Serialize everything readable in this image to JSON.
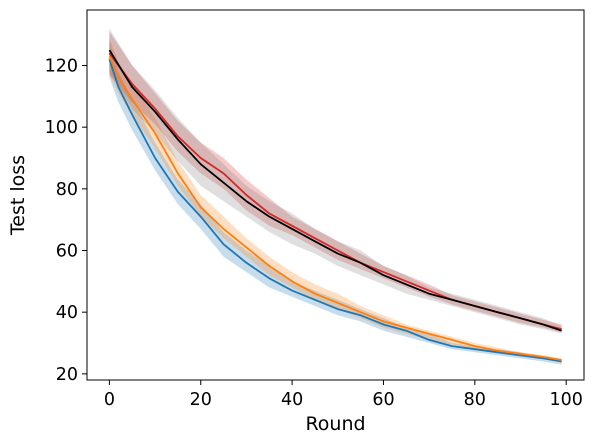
{
  "chart_data": {
    "type": "line",
    "title": "",
    "xlabel": "Round",
    "ylabel": "Test loss",
    "xlim": [
      -4.9,
      103.9
    ],
    "ylim": [
      18,
      138
    ],
    "xticks": [
      0,
      20,
      40,
      60,
      80,
      100
    ],
    "yticks": [
      20,
      40,
      60,
      80,
      100,
      120
    ],
    "grid": false,
    "legend": "none",
    "series": [
      {
        "color": "#1f77b4",
        "band_opacity": 0.25,
        "x": [
          0,
          2,
          5,
          10,
          15,
          20,
          25,
          30,
          35,
          40,
          45,
          50,
          55,
          60,
          65,
          70,
          75,
          80,
          85,
          90,
          95,
          99
        ],
        "y": [
          122,
          113,
          104,
          90,
          79,
          71,
          62,
          56,
          51,
          47,
          44,
          41,
          39,
          36,
          34,
          31,
          29,
          28,
          27,
          26,
          25,
          24
        ],
        "lower": [
          116,
          108,
          99,
          86,
          75,
          67,
          58,
          53,
          48,
          45,
          42,
          39,
          37,
          34,
          32,
          30,
          28,
          27,
          26,
          25,
          24,
          23
        ],
        "upper": [
          128,
          118,
          109,
          95,
          83,
          75,
          66,
          60,
          55,
          50,
          47,
          44,
          41,
          38,
          35,
          33,
          30,
          29,
          28,
          27,
          25,
          24.5
        ]
      },
      {
        "color": "#ff7f0e",
        "band_opacity": 0.25,
        "x": [
          0,
          2,
          5,
          10,
          15,
          20,
          25,
          30,
          35,
          40,
          45,
          50,
          55,
          60,
          65,
          70,
          75,
          80,
          85,
          90,
          95,
          99
        ],
        "y": [
          123,
          116,
          109,
          98,
          85,
          74,
          67,
          61,
          55,
          50,
          46,
          43,
          40,
          37,
          35,
          33,
          31,
          29,
          27.5,
          26.5,
          25.5,
          24.5
        ],
        "lower": [
          117,
          111,
          104,
          93,
          81,
          71,
          64,
          58,
          52,
          48,
          44,
          41,
          38,
          35,
          33,
          31,
          29.5,
          28,
          27,
          26,
          25,
          24
        ],
        "upper": [
          129,
          121,
          114,
          103,
          89,
          78,
          71,
          64,
          58,
          53,
          49,
          46,
          42,
          39,
          36,
          34,
          32,
          30,
          28.5,
          27,
          26,
          25
        ]
      },
      {
        "color": "#d62728",
        "band_opacity": 0.25,
        "x": [
          0,
          5,
          10,
          15,
          20,
          25,
          30,
          35,
          40,
          45,
          50,
          55,
          60,
          65,
          70,
          75,
          80,
          85,
          90,
          95,
          99
        ],
        "y": [
          124,
          114,
          106,
          97,
          90,
          85,
          78,
          72,
          68,
          64,
          60,
          56,
          53,
          50,
          47,
          44,
          42,
          40,
          38,
          36,
          34.5
        ],
        "lower": [
          117,
          108,
          101,
          92,
          85,
          80,
          73,
          68,
          65,
          61,
          57,
          54,
          51,
          48,
          45,
          42.5,
          40.5,
          38.5,
          36.5,
          35,
          33.5
        ],
        "upper": [
          131,
          120,
          111,
          102,
          95,
          90,
          83,
          77,
          71,
          67,
          63,
          59,
          55,
          52,
          49,
          45.5,
          43.5,
          41.5,
          39.5,
          37.5,
          36
        ]
      },
      {
        "color": "#000000",
        "band_opacity": 0.25,
        "band_color": "#7f7f7f",
        "x": [
          0,
          5,
          10,
          15,
          20,
          25,
          30,
          35,
          40,
          45,
          50,
          55,
          60,
          65,
          70,
          75,
          80,
          85,
          90,
          95,
          99
        ],
        "y": [
          125,
          113,
          105,
          96,
          88,
          82,
          76,
          71,
          67,
          63,
          59,
          56,
          52,
          49,
          46,
          44,
          42,
          40,
          38,
          36,
          34
        ],
        "lower": [
          118,
          106,
          98,
          89,
          81,
          76,
          71,
          66,
          62,
          59,
          55,
          52,
          49,
          46,
          44,
          42,
          40,
          38,
          36,
          34.5,
          33
        ],
        "upper": [
          132,
          120,
          112,
          103,
          95,
          88,
          81,
          76,
          72,
          67,
          63,
          60,
          55,
          52,
          48,
          46,
          44,
          42,
          40,
          38,
          35.5
        ]
      }
    ]
  }
}
